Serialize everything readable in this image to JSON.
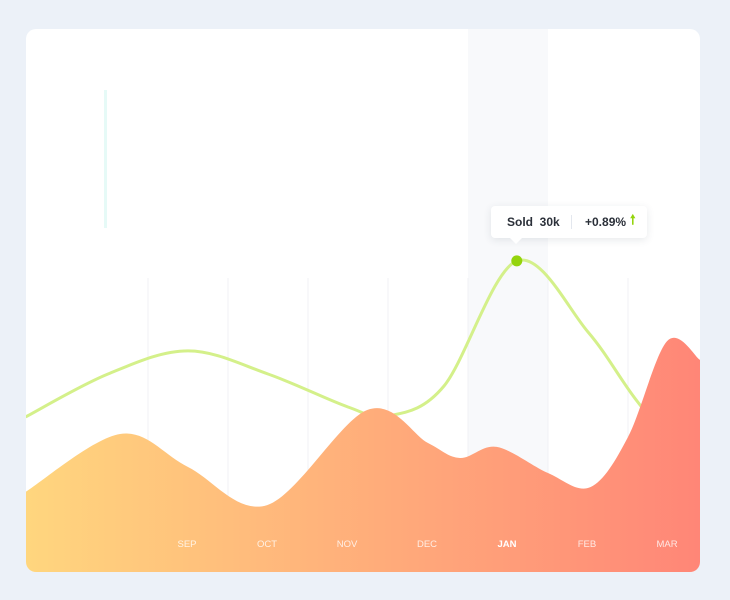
{
  "colors": {
    "page_bg": "#ecf1f8",
    "card_bg": "#ffffff",
    "highlight_col": "#f8f9fb",
    "grid": "#f1f1f4",
    "line": "#d4f08a",
    "dot": "#94d40c",
    "area_start": "#ffd67e",
    "area_end": "#ff8677",
    "accent_bar": "#e6faf7"
  },
  "chart_data": {
    "type": "area",
    "title": "",
    "categories": [
      "SEP",
      "OCT",
      "NOV",
      "DEC",
      "JAN",
      "FEB",
      "MAR"
    ],
    "highlighted_category": "JAN",
    "grid": "vertical",
    "series": [
      {
        "kind": "line",
        "points": [
          [
            -2.03,
            51.7
          ],
          [
            -1,
            66
          ],
          [
            0,
            73.7
          ],
          [
            1,
            66
          ],
          [
            2,
            55
          ],
          [
            2.5,
            52
          ],
          [
            3.2,
            62
          ],
          [
            4.11,
            103.7
          ],
          [
            5,
            80
          ],
          [
            5.65,
            55.7
          ],
          [
            6.4,
            34
          ]
        ]
      },
      {
        "kind": "area",
        "points": [
          [
            -2.03,
            26.7
          ],
          [
            -0.85,
            46
          ],
          [
            0,
            35
          ],
          [
            0.99,
            22.3
          ],
          [
            2.24,
            54
          ],
          [
            3.0,
            43
          ],
          [
            3.4,
            38
          ],
          [
            3.86,
            41.7
          ],
          [
            4.5,
            33
          ],
          [
            5.03,
            28.3
          ],
          [
            5.5,
            45
          ],
          [
            5.99,
            77
          ],
          [
            6.4,
            70.7
          ]
        ]
      }
    ],
    "tooltip": {
      "label": "Sold",
      "value": "30k",
      "change": "+0.89%",
      "direction": "up",
      "category": "JAN"
    }
  }
}
